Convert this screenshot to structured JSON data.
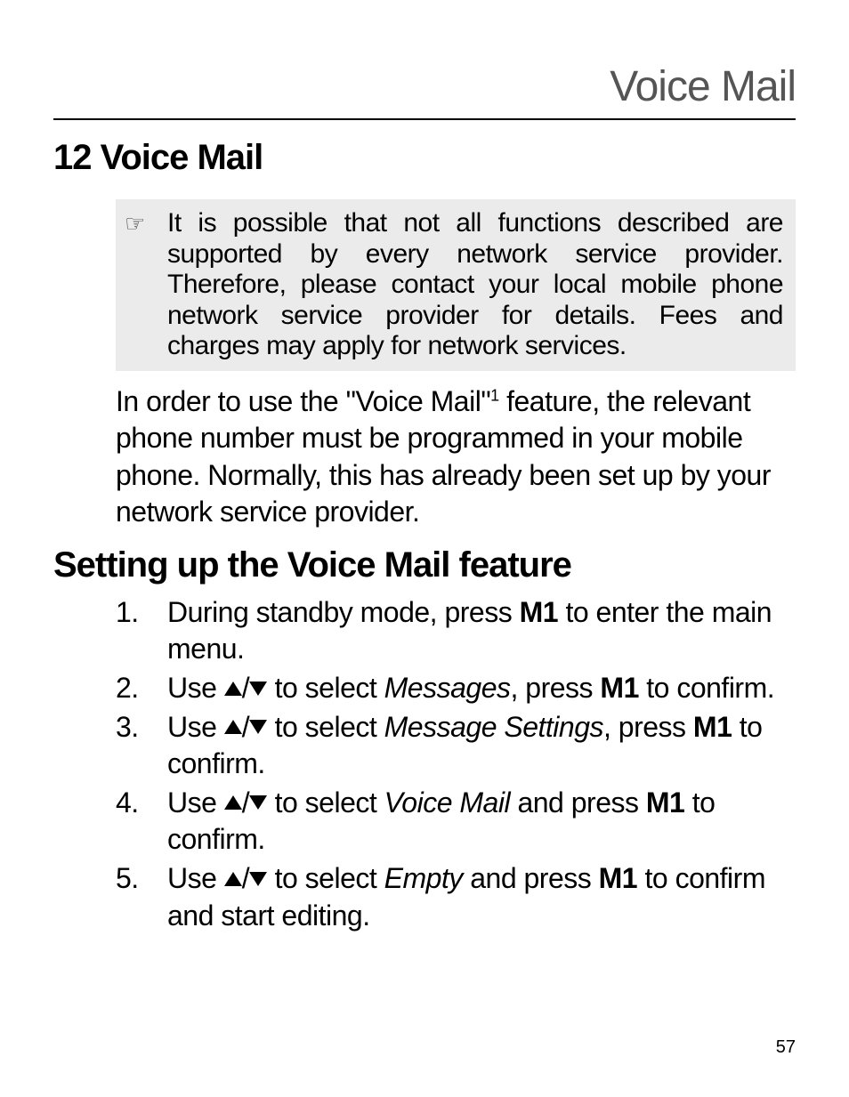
{
  "header": {
    "title": "Voice Mail"
  },
  "chapter": {
    "number": "12",
    "title": "Voice Mail"
  },
  "note": {
    "icon": "☞",
    "text": "It is possible that not all functions described are supported by every network service provider. Therefore, please contact your local mobile phone network service provider for details. Fees and charges may apply for network services."
  },
  "intro": {
    "pre": "In order to use the \"Voice Mail\"",
    "sup": "1",
    "post": " feature, the relevant phone number must be programmed in your mobile phone. Normally, this has already been set up by your network service provider."
  },
  "section": {
    "title": "Setting up the Voice Mail feature"
  },
  "steps": [
    {
      "num": "1.",
      "parts": [
        {
          "t": "text",
          "v": "During standby mode, press "
        },
        {
          "t": "bold",
          "v": "M1"
        },
        {
          "t": "text",
          "v": " to enter the main menu."
        }
      ]
    },
    {
      "num": "2.",
      "parts": [
        {
          "t": "text",
          "v": "Use "
        },
        {
          "t": "arrows"
        },
        {
          "t": "text",
          "v": " to select "
        },
        {
          "t": "italic",
          "v": "Messages"
        },
        {
          "t": "text",
          "v": ", press "
        },
        {
          "t": "bold",
          "v": "M1"
        },
        {
          "t": "text",
          "v": " to confirm."
        }
      ]
    },
    {
      "num": "3.",
      "parts": [
        {
          "t": "text",
          "v": "Use "
        },
        {
          "t": "arrows"
        },
        {
          "t": "text",
          "v": " to select "
        },
        {
          "t": "italic",
          "v": "Message Settings"
        },
        {
          "t": "text",
          "v": ", press "
        },
        {
          "t": "bold",
          "v": "M1"
        },
        {
          "t": "text",
          "v": " to confirm."
        }
      ]
    },
    {
      "num": "4.",
      "parts": [
        {
          "t": "text",
          "v": "Use "
        },
        {
          "t": "arrows"
        },
        {
          "t": "text",
          "v": " to select "
        },
        {
          "t": "italic",
          "v": "Voice Mail"
        },
        {
          "t": "text",
          "v": " and press "
        },
        {
          "t": "bold",
          "v": "M1"
        },
        {
          "t": "text",
          "v": " to confirm."
        }
      ]
    },
    {
      "num": "5.",
      "parts": [
        {
          "t": "text",
          "v": "Use "
        },
        {
          "t": "arrows"
        },
        {
          "t": "text",
          "v": " to select "
        },
        {
          "t": "italic",
          "v": "Empty"
        },
        {
          "t": "text",
          "v": " and press "
        },
        {
          "t": "bold",
          "v": "M1"
        },
        {
          "t": "text",
          "v": " to confirm and start editing."
        }
      ]
    }
  ],
  "pageNumber": "57"
}
